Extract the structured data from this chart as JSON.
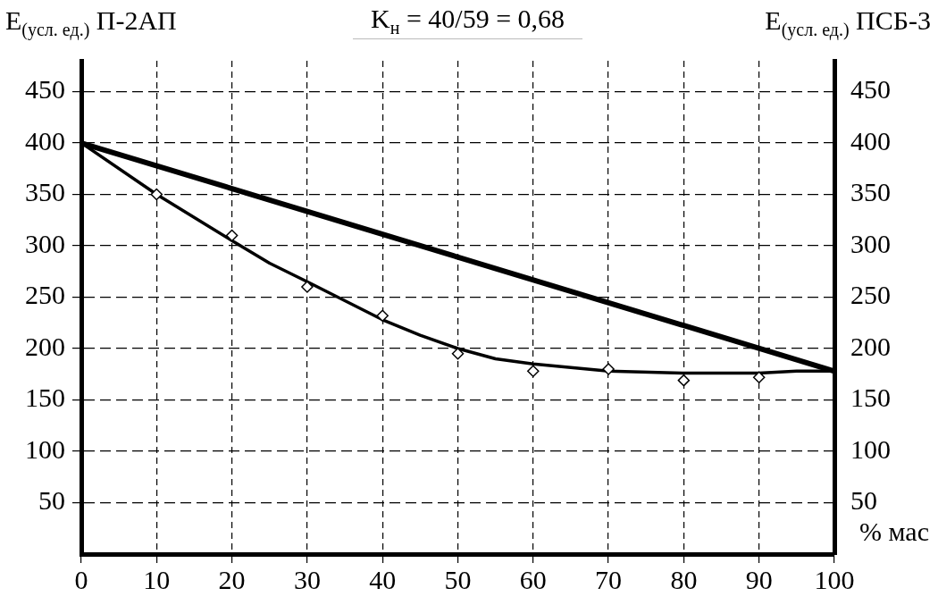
{
  "chart_data": {
    "type": "line",
    "annotations": [
      "K$_{н}$ = 40/59 = 0,68"
    ],
    "xlabel": "% мас",
    "ylabel": "E$_{(усл. ед.)}$ П-2АП",
    "y2label": "E$_{(усл. ед.)}$ ПСБ-3",
    "series": [
      {
        "color": "#000000",
        "line_style": "solid",
        "marker": "none",
        "x": [
          0,
          100
        ],
        "values": [
          400,
          178
        ]
      },
      {
        "color": "#000000",
        "line_style": "solid",
        "marker": "none",
        "x": [
          0,
          10,
          20,
          25,
          30,
          40,
          45,
          50,
          55,
          60,
          70,
          80,
          90,
          95,
          100
        ],
        "values": [
          400,
          350,
          305,
          283,
          265,
          228,
          213,
          200,
          190,
          185,
          178,
          176,
          176,
          178,
          178
        ]
      },
      {
        "type": "scatter",
        "color": "#000000",
        "marker": "diamond",
        "x": [
          10,
          20,
          30,
          40,
          50,
          60,
          70,
          80,
          90
        ],
        "values": [
          350,
          310,
          260,
          232,
          195,
          178,
          180,
          169,
          172
        ]
      }
    ],
    "xlim": [
      0,
      100
    ],
    "xticks": [
      0,
      10,
      20,
      30,
      40,
      50,
      60,
      70,
      80,
      90,
      100
    ],
    "ylim": [
      0,
      480
    ],
    "yticks": [
      50,
      100,
      150,
      200,
      250,
      300,
      350,
      400,
      450
    ],
    "y2lim": [
      0,
      480
    ],
    "y2ticks": [
      50,
      100,
      150,
      200,
      250,
      300,
      350,
      400,
      450
    ],
    "grid": true,
    "legend": false
  }
}
